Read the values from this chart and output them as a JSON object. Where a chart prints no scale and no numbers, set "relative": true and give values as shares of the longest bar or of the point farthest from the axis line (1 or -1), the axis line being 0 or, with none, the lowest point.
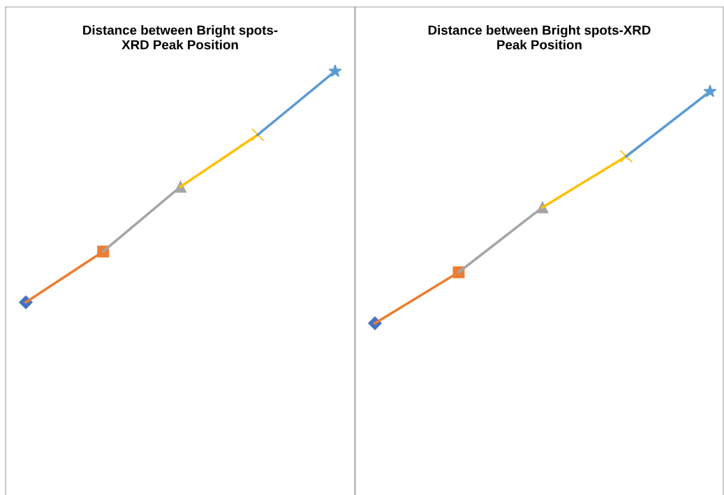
{
  "chart_data": [
    {
      "type": "line",
      "title": "Distance between Bright spots-\nXRD Peak Position",
      "relative": true,
      "categories": [
        null,
        null,
        null,
        null,
        null
      ],
      "legend": false,
      "grid": false,
      "series": [
        {
          "color": "#4472c4",
          "marker": "diamond",
          "values": [
            0,
            null,
            null,
            null,
            null
          ]
        },
        {
          "color": "#ed7d31",
          "marker": "square",
          "values": [
            0,
            0.22,
            null,
            null,
            null
          ]
        },
        {
          "color": "#a5a5a5",
          "marker": "triangle",
          "values": [
            null,
            0.22,
            0.5,
            null,
            null
          ]
        },
        {
          "color": "#ffc000",
          "marker": "cross",
          "values": [
            null,
            null,
            0.5,
            0.725,
            null
          ]
        },
        {
          "color": "#5b9bd5",
          "marker": "star",
          "values": [
            null,
            null,
            null,
            0.725,
            1
          ]
        }
      ]
    },
    {
      "type": "line",
      "title": "Distance between Bright spots-XRD\nPeak Position",
      "relative": true,
      "categories": [
        null,
        null,
        null,
        null,
        null
      ],
      "legend": false,
      "grid": false,
      "series": [
        {
          "color": "#4472c4",
          "marker": "diamond",
          "values": [
            0,
            null,
            null,
            null,
            null
          ]
        },
        {
          "color": "#ed7d31",
          "marker": "square",
          "values": [
            0,
            0.22,
            null,
            null,
            null
          ]
        },
        {
          "color": "#a5a5a5",
          "marker": "triangle",
          "values": [
            null,
            0.22,
            0.5,
            null,
            null
          ]
        },
        {
          "color": "#ffc000",
          "marker": "cross",
          "values": [
            null,
            null,
            0.5,
            0.72,
            null
          ]
        },
        {
          "color": "#5b9bd5",
          "marker": "star",
          "values": [
            null,
            null,
            null,
            0.72,
            1
          ]
        }
      ]
    }
  ]
}
